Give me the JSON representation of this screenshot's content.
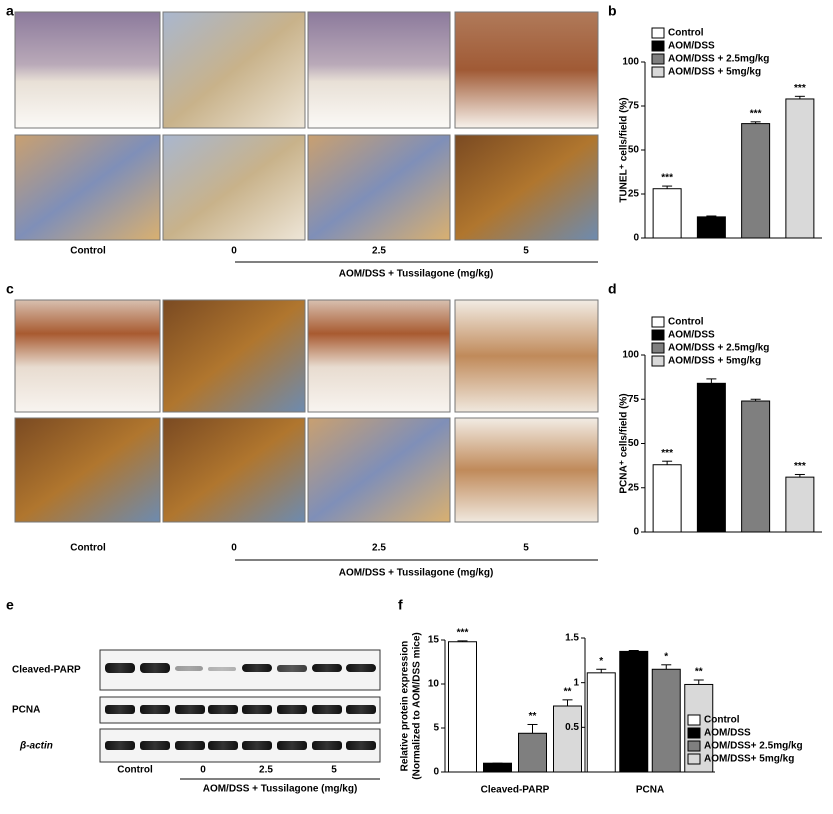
{
  "figure": {
    "panel_labels": [
      "a",
      "b",
      "c",
      "d",
      "e",
      "f"
    ],
    "panel_a": {
      "captions": [
        "Control",
        "0",
        "2.5",
        "5"
      ],
      "group_label": "AOM/DSS + Tussilagone (mg/kg)"
    },
    "panel_c": {
      "captions": [
        "Control",
        "0",
        "2.5",
        "5"
      ],
      "group_label": "AOM/DSS + Tussilagone (mg/kg)"
    },
    "panel_e": {
      "rows": [
        "Cleaved-PARP",
        "PCNA",
        "β-actin"
      ],
      "captions": [
        "Control",
        "0",
        "2.5",
        "5"
      ],
      "group_label": "AOM/DSS + Tussilagone (mg/kg)"
    }
  },
  "chart_data": [
    {
      "type": "bar",
      "ylabel": "TUNEL⁺ cells/field (%)",
      "categories": [
        "Control",
        "AOM/DSS",
        "AOM/DSS + 2.5mg/kg",
        "AOM/DSS +  5mg/kg"
      ],
      "values": [
        28,
        12,
        65,
        79
      ],
      "errors": [
        1.5,
        0.5,
        1,
        1.5
      ],
      "annotations": [
        "***",
        null,
        "***",
        "***"
      ],
      "colors": [
        "#ffffff",
        "#000000",
        "#7f7f7f",
        "#d9d9d9"
      ],
      "ylim": [
        0,
        100
      ],
      "yticks": [
        0,
        25,
        50,
        75,
        100
      ],
      "legend": "top-left"
    },
    {
      "type": "bar",
      "ylabel": "PCNA⁺ cells/field (%)",
      "categories": [
        "Control",
        "AOM/DSS",
        "AOM/DSS + 2.5mg/kg",
        "AOM/DSS +  5mg/kg"
      ],
      "values": [
        38,
        84,
        74,
        31
      ],
      "errors": [
        2,
        2.5,
        1,
        1.5
      ],
      "annotations": [
        "***",
        null,
        null,
        "***"
      ],
      "colors": [
        "#ffffff",
        "#000000",
        "#7f7f7f",
        "#d9d9d9"
      ],
      "ylim": [
        0,
        100
      ],
      "yticks": [
        0,
        25,
        50,
        75,
        100
      ],
      "legend": "top-left"
    },
    {
      "type": "bar",
      "ylabel": [
        "Relative protein expression",
        "(Normalized to AOM/DSS mice)"
      ],
      "xlabel": "Cleaved-PARP",
      "values": [
        14.8,
        1,
        4.4,
        7.5
      ],
      "errors": [
        0.1,
        0,
        1,
        0.7
      ],
      "annotations": [
        "***",
        null,
        "**",
        "**"
      ],
      "colors": [
        "#ffffff",
        "#000000",
        "#7f7f7f",
        "#d9d9d9"
      ],
      "ylim": [
        0,
        15
      ],
      "yticks": [
        0,
        5,
        10,
        15
      ]
    },
    {
      "type": "bar",
      "xlabel": "PCNA",
      "categories": [
        "Control",
        "AOM/DSS",
        "AOM/DSS+ 2.5mg/kg",
        "AOM/DSS+ 5mg/kg"
      ],
      "values": [
        1.11,
        1.35,
        1.15,
        0.98
      ],
      "errors": [
        0.04,
        0.01,
        0.05,
        0.05
      ],
      "annotations": [
        "*",
        null,
        "*",
        "**"
      ],
      "colors": [
        "#ffffff",
        "#000000",
        "#7f7f7f",
        "#d9d9d9"
      ],
      "ylim": [
        0,
        1.5
      ],
      "yticks": [
        0.5,
        1,
        1.5
      ],
      "legend": "bottom-right"
    }
  ]
}
